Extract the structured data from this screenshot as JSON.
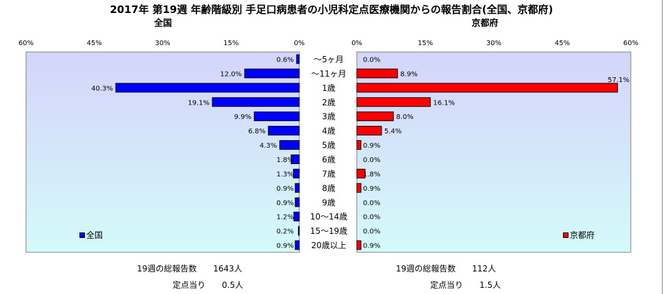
{
  "chart_data": {
    "type": "bar",
    "title": "2017年 第19週 年齢階級別 手足口病患者の小児科定点医療機関からの報告割合(全国、京都府)",
    "categories": [
      "～5ヶ月",
      "～11ヶ月",
      "1歳",
      "2歳",
      "3歳",
      "4歳",
      "5歳",
      "6歳",
      "7歳",
      "8歳",
      "9歳",
      "10～14歳",
      "15～19歳",
      "20歳以上"
    ],
    "xlim": [
      0,
      60
    ],
    "ticks": [
      "0%",
      "15%",
      "30%",
      "45%",
      "60%"
    ],
    "grid": false,
    "series": [
      {
        "name": "全国",
        "panel_title": "全国",
        "color": "#0000ff",
        "legend": "全国",
        "values": [
          0.6,
          12.0,
          40.3,
          19.1,
          9.9,
          6.8,
          4.3,
          1.8,
          1.3,
          0.9,
          0.9,
          1.2,
          0.2,
          0.9
        ],
        "labels": [
          "0.6%",
          "12.0%",
          "40.3%",
          "19.1%",
          "9.9%",
          "6.8%",
          "4.3%",
          "1.8%",
          "1.3%",
          "0.9%",
          "0.9%",
          "1.2%",
          "0.2%",
          "0.9%"
        ]
      },
      {
        "name": "京都府",
        "panel_title": "京都府",
        "color": "#ff0000",
        "legend": "京都府",
        "values": [
          0.0,
          8.9,
          57.1,
          16.1,
          8.0,
          5.4,
          0.9,
          0.0,
          1.8,
          0.9,
          0.0,
          0.0,
          0.0,
          0.9
        ],
        "labels": [
          "0.0%",
          "8.9%",
          "57.1%",
          "16.1%",
          "8.0%",
          "5.4%",
          "0.9%",
          "0.0%",
          "1.8%",
          "0.9%",
          "0.0%",
          "0.0%",
          "0.0%",
          "0.9%"
        ]
      }
    ]
  },
  "footer": {
    "national_total": "19週の総報告数　　1643人",
    "national_per": "定点当り　　0.5人",
    "kyoto_total": "19週の総報告数　　112人",
    "kyoto_per": "定点当り　　1.5人"
  },
  "colors": {
    "national": "#0000ff",
    "kyoto": "#ff0000",
    "plot_top": "#d4d4fa",
    "plot_bottom": "#d4fafa"
  }
}
